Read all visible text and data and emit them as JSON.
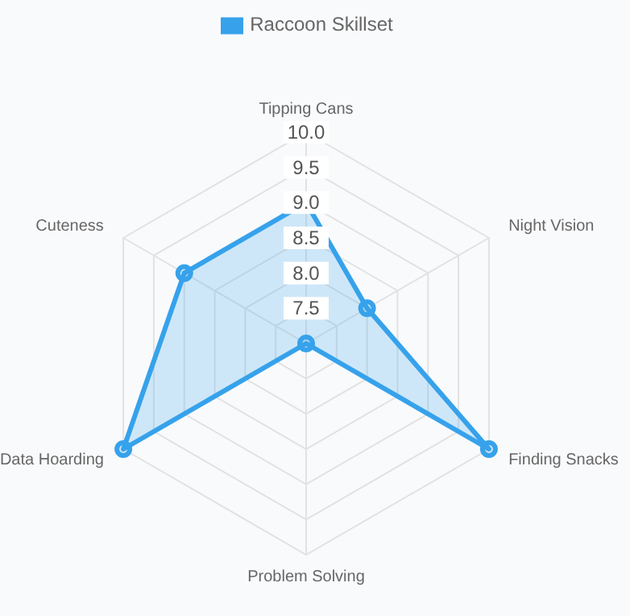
{
  "chart_data": {
    "type": "radar",
    "categories": [
      "Tipping Cans",
      "Night Vision",
      "Finding Snacks",
      "Problem Solving",
      "Data Hoarding",
      "Cuteness"
    ],
    "series": [
      {
        "name": "Raccoon Skillset",
        "color": "#36a2eb",
        "values": [
          9.0,
          8.0,
          10.0,
          7.0,
          10.0,
          9.0
        ]
      }
    ],
    "ylim": [
      7,
      10
    ],
    "yticks": [
      {
        "value": 7.5,
        "label": "7.5"
      },
      {
        "value": 8,
        "label": "8.0"
      },
      {
        "value": 8.5,
        "label": "8.5"
      },
      {
        "value": 9,
        "label": "9.0"
      },
      {
        "value": 9.5,
        "label": "9.5"
      },
      {
        "value": 10,
        "label": "10.0"
      }
    ],
    "grid": true,
    "legend": "top",
    "marker": "circle"
  }
}
